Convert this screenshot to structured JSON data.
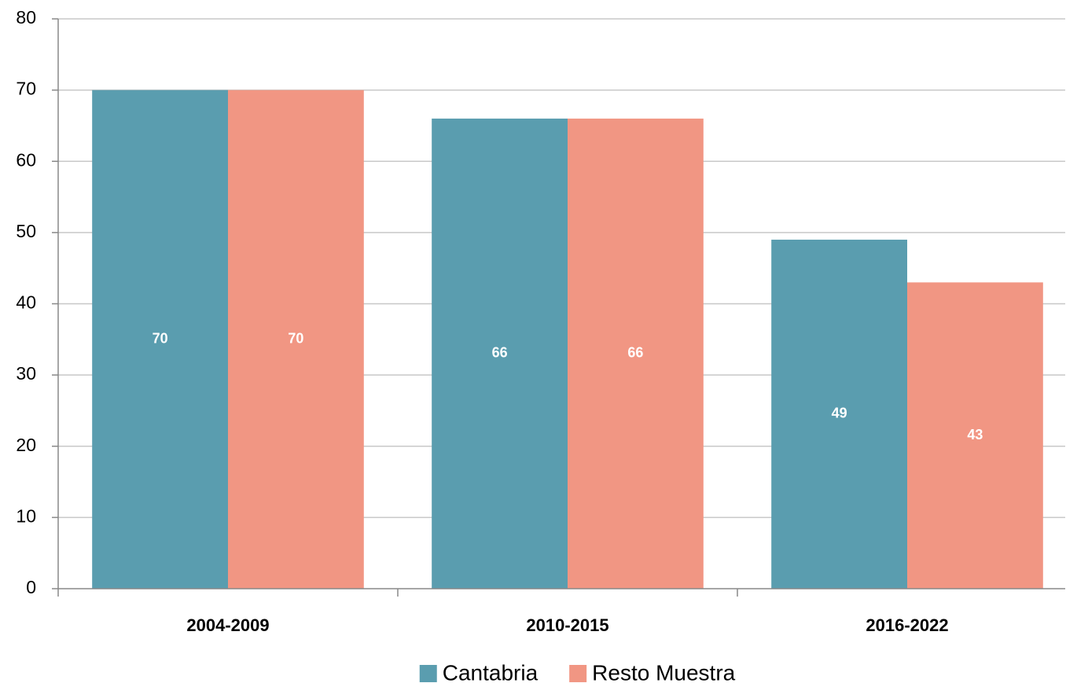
{
  "chart_data": {
    "type": "bar",
    "categories": [
      "2004-2009",
      "2010-2015",
      "2016-2022"
    ],
    "series": [
      {
        "name": "Cantabria",
        "color": "#5a9daf",
        "values": [
          70,
          66,
          49
        ]
      },
      {
        "name": "Resto Muestra",
        "color": "#f19683",
        "values": [
          70,
          66,
          43
        ]
      }
    ],
    "ylim": [
      0,
      80
    ],
    "yticks": [
      0,
      10,
      20,
      30,
      40,
      50,
      60,
      70,
      80
    ],
    "grid": true,
    "legend": "bottom"
  }
}
